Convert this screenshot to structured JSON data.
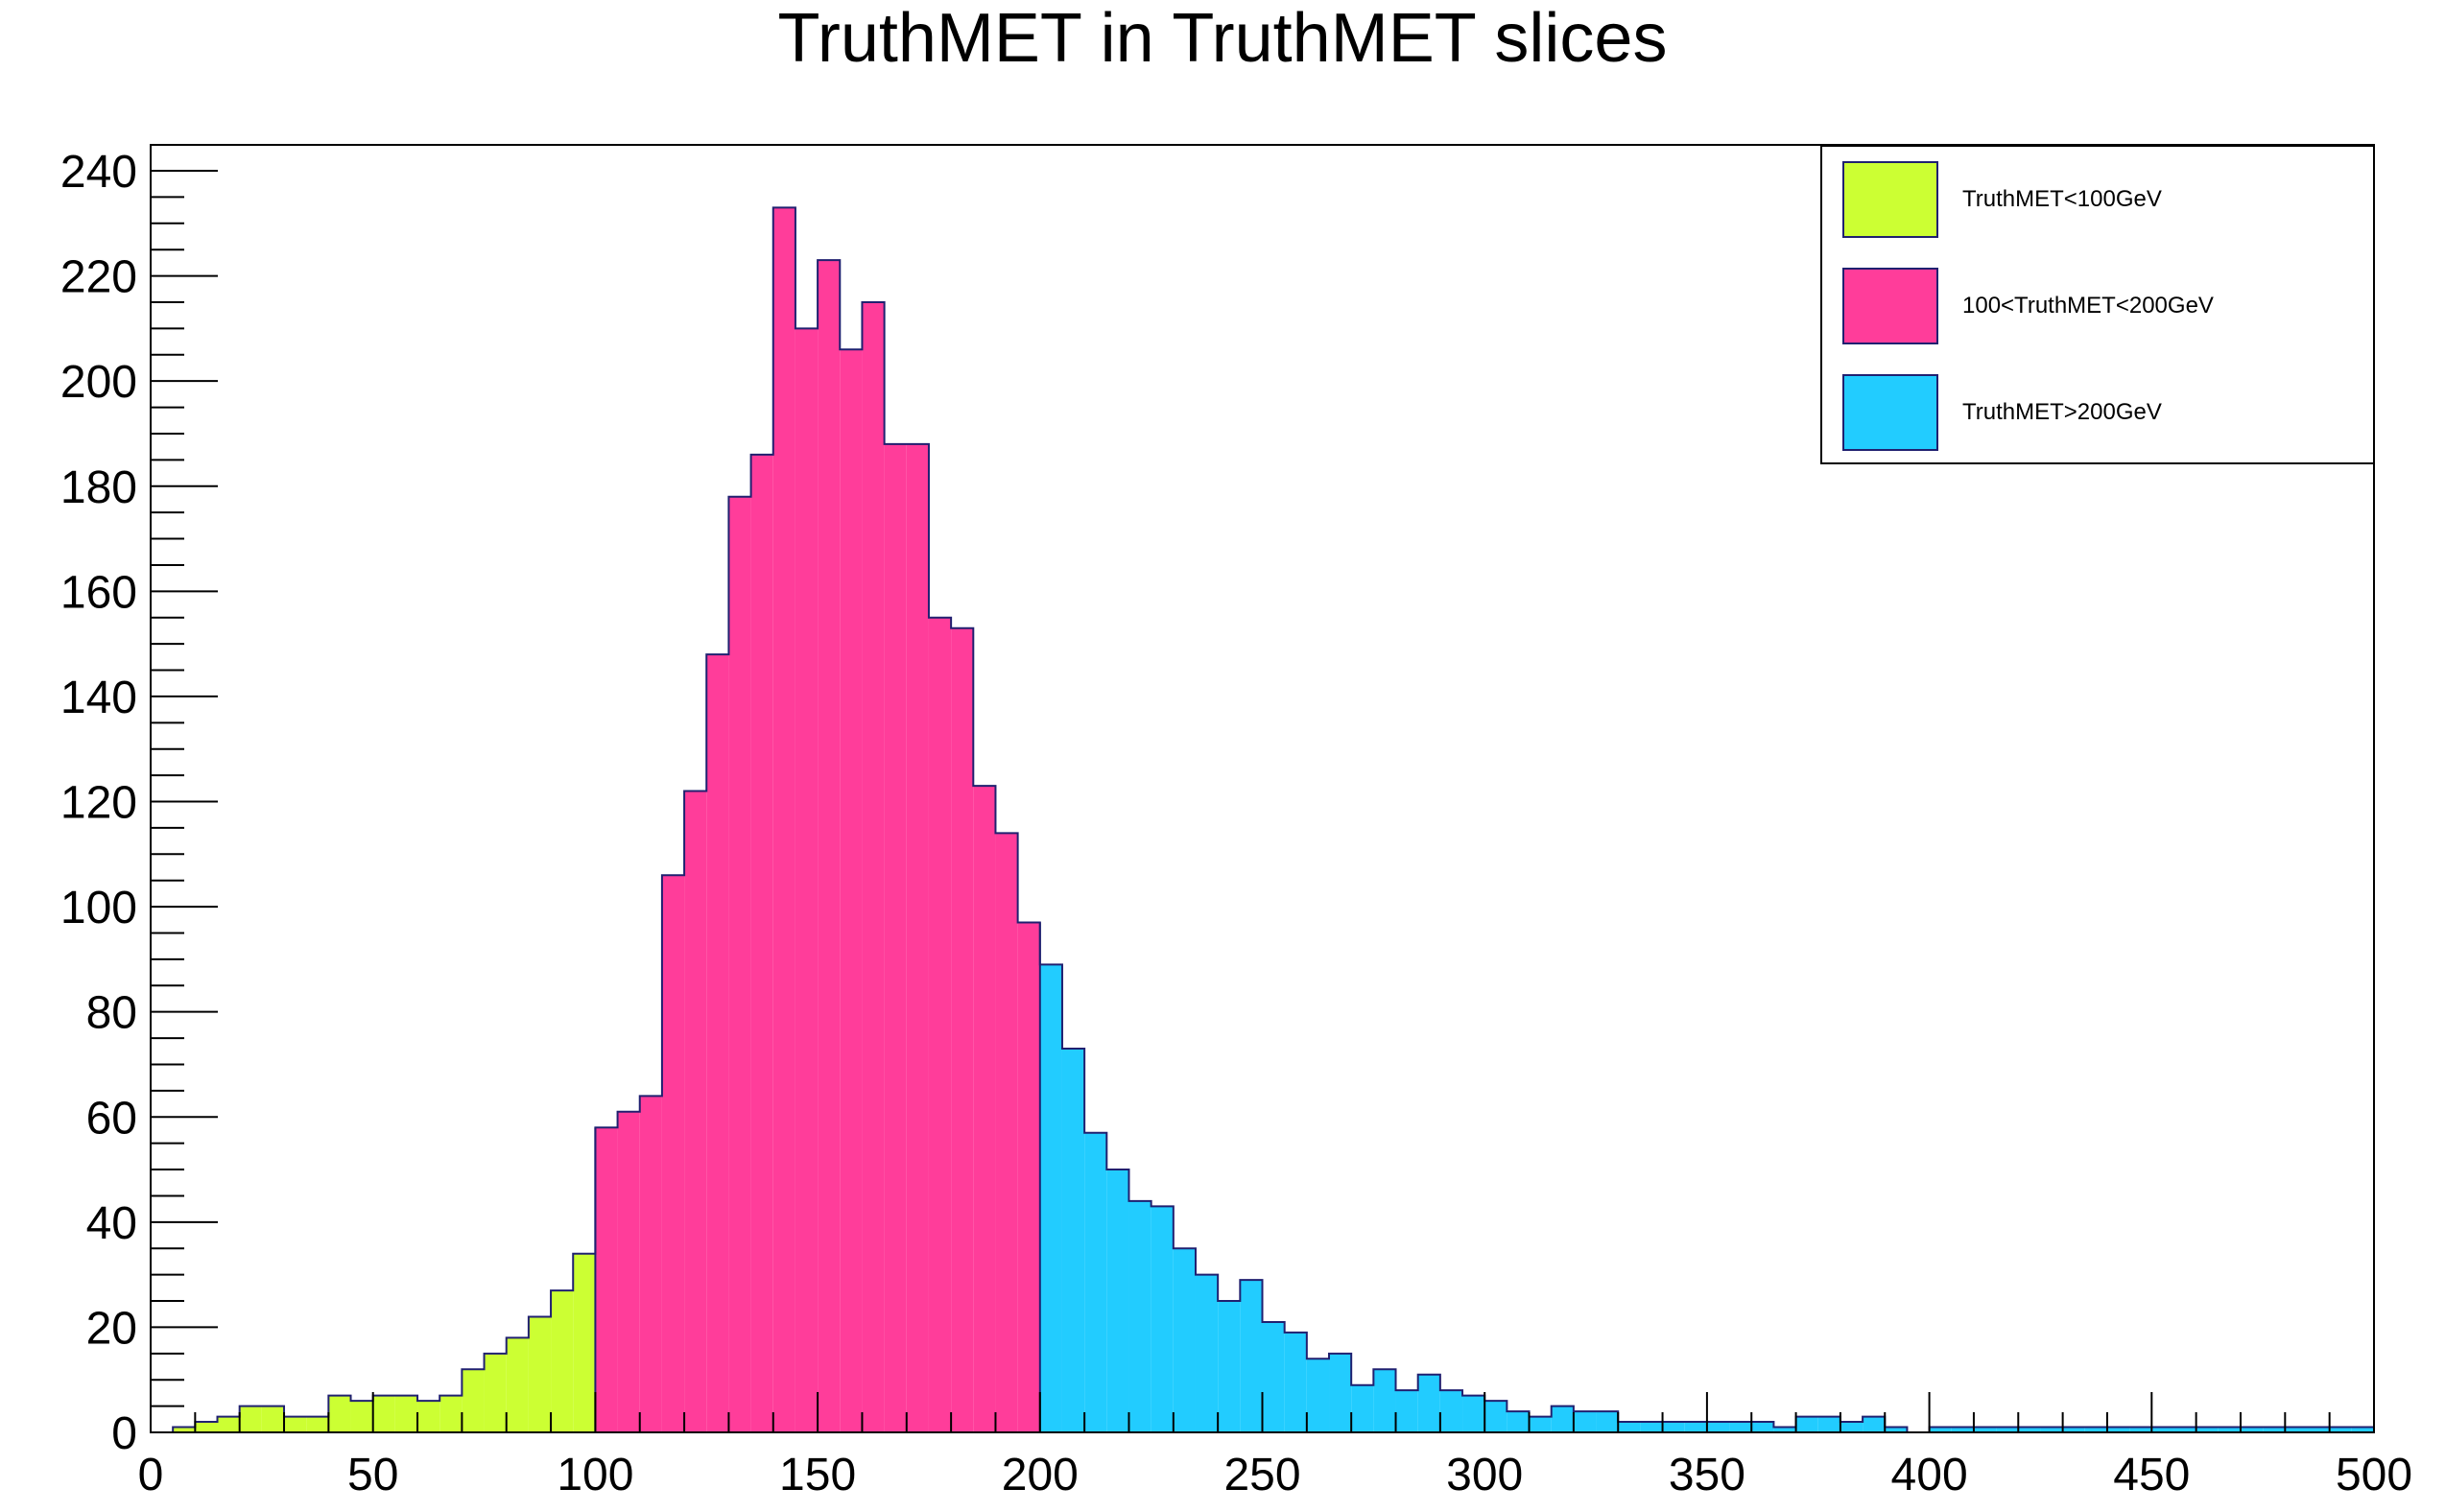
{
  "colors": {
    "slice_low": "#ccff33",
    "slice_mid": "#ff3d9a",
    "slice_high": "#22ccff",
    "outline": "#202070",
    "axis": "#000000"
  },
  "chart_data": {
    "type": "bar",
    "title": "TruthMET in TruthMET slices",
    "xlabel": "",
    "ylabel": "",
    "xlim": [
      0,
      500
    ],
    "ylim": [
      0,
      240
    ],
    "bin_width": 5,
    "grid": false,
    "legend_position": "top-right",
    "x_ticks": [
      0,
      50,
      100,
      150,
      200,
      250,
      300,
      350,
      400,
      450,
      500
    ],
    "y_ticks": [
      0,
      20,
      40,
      60,
      80,
      100,
      120,
      140,
      160,
      180,
      200,
      220,
      240
    ],
    "series": [
      {
        "name": "TruthMET<100GeV",
        "color": "#ccff33",
        "x": [
          0,
          5,
          10,
          15,
          20,
          25,
          30,
          35,
          40,
          45,
          50,
          55,
          60,
          65,
          70,
          75,
          80,
          85,
          90,
          95
        ],
        "values": [
          0,
          1,
          2,
          3,
          5,
          5,
          3,
          3,
          7,
          6,
          7,
          7,
          6,
          7,
          12,
          15,
          18,
          22,
          27,
          34
        ]
      },
      {
        "name": "100<TruthMET<200GeV",
        "color": "#ff3d9a",
        "x": [
          100,
          105,
          110,
          115,
          120,
          125,
          130,
          135,
          140,
          145,
          150,
          155,
          160,
          165,
          170,
          175,
          180,
          185,
          190,
          195
        ],
        "values": [
          58,
          61,
          64,
          106,
          122,
          148,
          178,
          186,
          233,
          210,
          223,
          206,
          215,
          188,
          188,
          155,
          153,
          123,
          114,
          97
        ]
      },
      {
        "name": "TruthMET>200GeV",
        "color": "#22ccff",
        "x": [
          200,
          205,
          210,
          215,
          220,
          225,
          230,
          235,
          240,
          245,
          250,
          255,
          260,
          265,
          270,
          275,
          280,
          285,
          290,
          295,
          300,
          305,
          310,
          315,
          320,
          325,
          330,
          335,
          340,
          345,
          350,
          355,
          360,
          365,
          370,
          375,
          380,
          385,
          390,
          395,
          400,
          405,
          410,
          415,
          420,
          425,
          430,
          435,
          440,
          445,
          450,
          455,
          460,
          465,
          470,
          475,
          480,
          485,
          490,
          495
        ],
        "values": [
          89,
          73,
          57,
          50,
          44,
          43,
          35,
          30,
          25,
          29,
          21,
          19,
          14,
          15,
          9,
          12,
          8,
          11,
          8,
          7,
          6,
          4,
          3,
          5,
          4,
          4,
          2,
          2,
          2,
          2,
          2,
          2,
          2,
          1,
          3,
          3,
          2,
          3,
          1,
          0,
          1,
          1,
          1,
          1,
          1,
          1,
          1,
          1,
          1,
          1,
          1,
          1,
          1,
          1,
          1,
          1,
          1,
          1,
          1,
          1
        ]
      }
    ]
  }
}
